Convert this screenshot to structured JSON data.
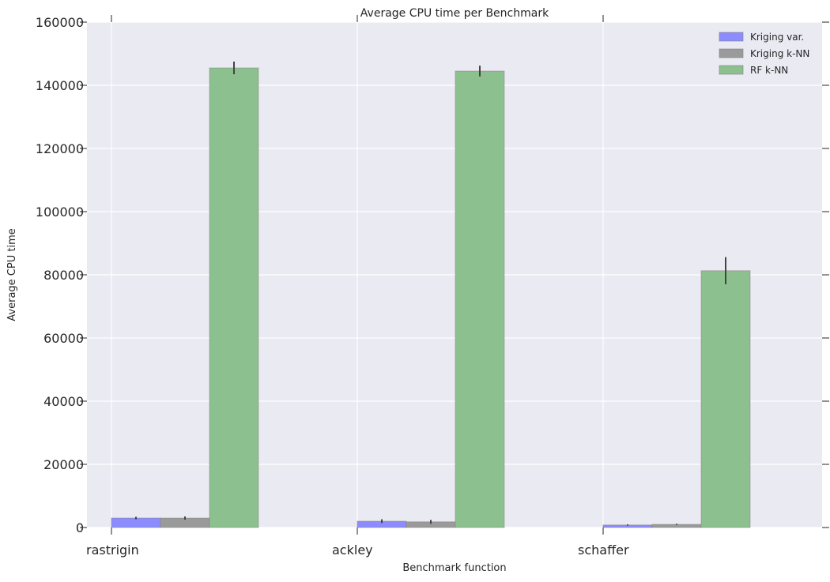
{
  "chart_data": {
    "type": "bar",
    "title": "Average CPU time per Benchmark",
    "xlabel": "Benchmark function",
    "ylabel": "Average CPU time",
    "categories": [
      "rastrigin",
      "ackley",
      "schaffer"
    ],
    "ylim": [
      0,
      160000
    ],
    "yticks": [
      0,
      20000,
      40000,
      60000,
      80000,
      100000,
      120000,
      140000,
      160000
    ],
    "grid": true,
    "legend_position": "top-right",
    "series": [
      {
        "name": "Kriging var.",
        "color": "#8c8cff",
        "values": [
          3000,
          2000,
          800
        ],
        "errors": [
          400,
          600,
          200
        ]
      },
      {
        "name": "Kriging k-NN",
        "color": "#9a9a9a",
        "values": [
          3000,
          1800,
          1000
        ],
        "errors": [
          500,
          600,
          200
        ]
      },
      {
        "name": "RF k-NN",
        "color": "#8dc08f",
        "values": [
          145500,
          144500,
          81300
        ],
        "errors": [
          2000,
          1700,
          4300
        ]
      }
    ]
  }
}
